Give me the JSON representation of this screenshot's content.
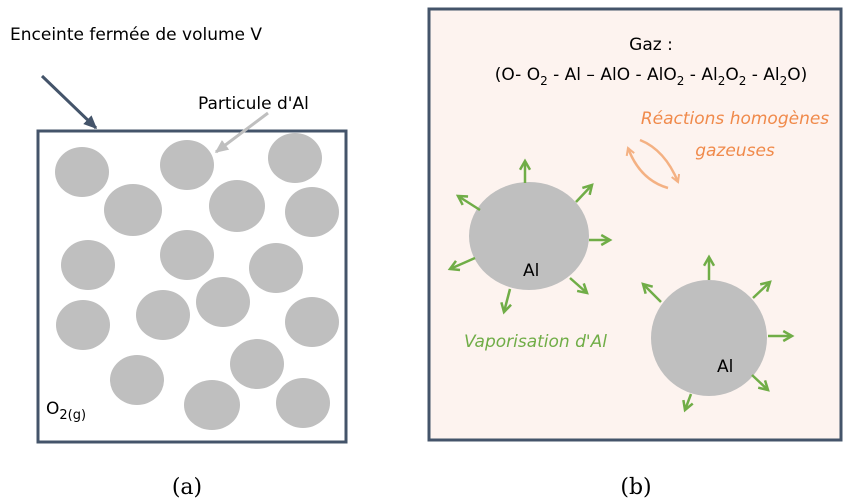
{
  "panel_a": {
    "label": "Enceinte fermée de volume V",
    "particle_label": "Particule d'Al",
    "gas_symbol": [
      "O",
      "2(g)"
    ],
    "caption": "(a)"
  },
  "panel_b": {
    "gas_title": "Gaz :",
    "gas_formula": [
      "(O- O",
      "2",
      " - Al – AlO - AlO",
      "2",
      " - Al",
      "2",
      "O",
      "2",
      " - Al",
      "2",
      "O)"
    ],
    "reactions": [
      "Réactions homogènes",
      "gazeuses"
    ],
    "vaporisation": "Vaporisation d'Al",
    "particles": [
      "Al",
      "Al"
    ],
    "caption": "(b)"
  }
}
